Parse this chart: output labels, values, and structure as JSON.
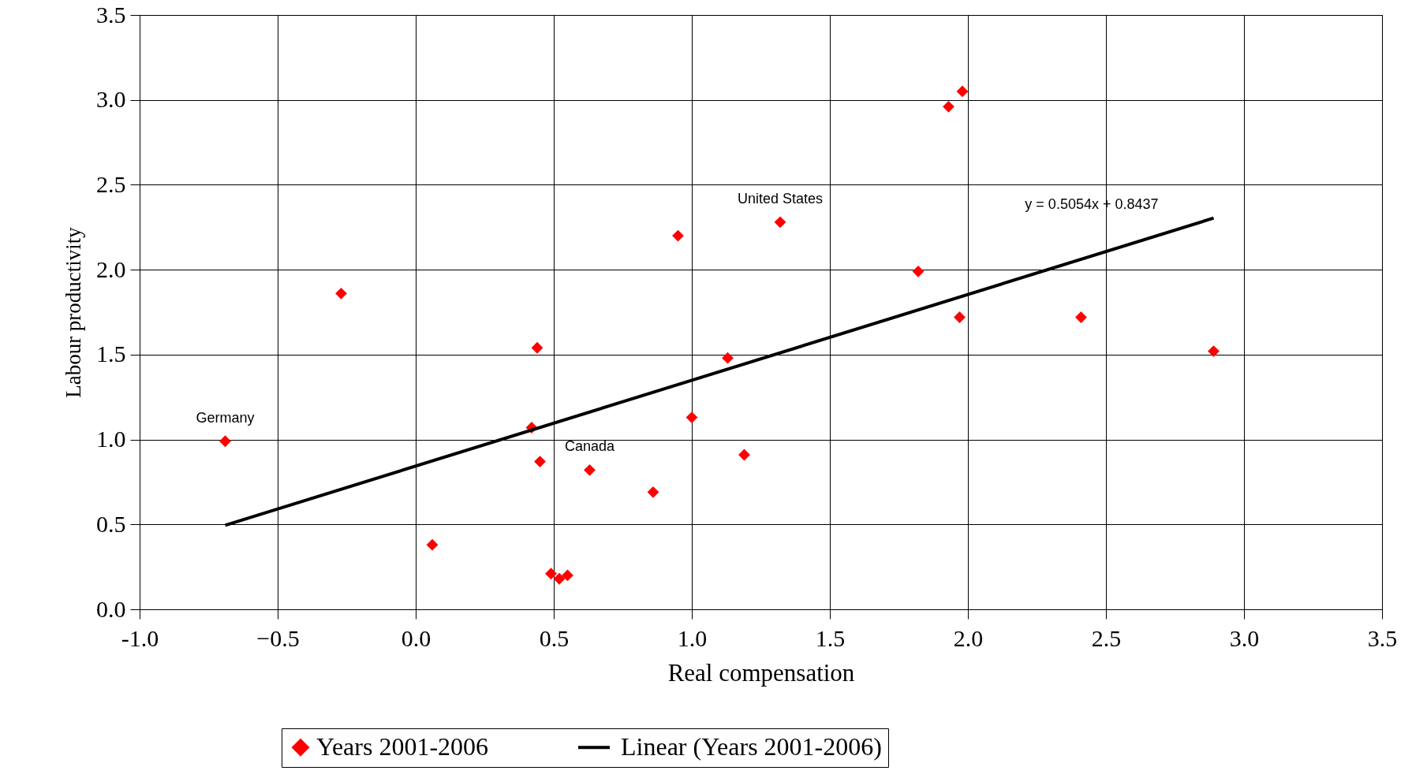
{
  "chart_data": {
    "type": "scatter",
    "xlabel": "Real compensation",
    "ylabel": "Labour productivity",
    "xlim": [
      -1.0,
      3.5
    ],
    "xticks": [
      {
        "value": -1,
        "label": "-1.0"
      },
      -0.5,
      {
        "value": 0,
        "label": "0.0"
      },
      0.5,
      {
        "value": 1,
        "label": "1.0"
      },
      1.5,
      {
        "value": 2,
        "label": "2.0"
      },
      2.5,
      {
        "value": 3,
        "label": "3.0"
      },
      3.5
    ],
    "ylim": [
      0,
      3.5
    ],
    "yticks": [
      {
        "value": 0,
        "label": "0.0"
      },
      0.5,
      {
        "value": 1,
        "label": "1.0"
      },
      1.5,
      {
        "value": 2,
        "label": "2.0"
      },
      2.5,
      {
        "value": 3,
        "label": "3.0"
      },
      3.5
    ],
    "grid": true,
    "legend": "bottom",
    "series": [
      {
        "name": "Years 2001-2006",
        "marker": "diamond",
        "color": "#ff0000",
        "x": [
          -0.69,
          -0.27,
          0.06,
          0.44,
          0.42,
          0.45,
          0.49,
          0.52,
          0.55,
          0.63,
          0.86,
          0.95,
          1.0,
          1.13,
          1.19,
          1.32,
          1.82,
          1.93,
          1.98,
          1.97,
          2.41,
          2.89
        ],
        "values": [
          0.99,
          1.86,
          0.38,
          1.54,
          1.07,
          0.87,
          0.21,
          0.18,
          0.2,
          0.82,
          0.69,
          2.2,
          1.13,
          1.48,
          0.91,
          2.28,
          1.99,
          2.96,
          3.05,
          1.72,
          1.72,
          1.52
        ]
      },
      {
        "name": "Linear (Years 2001-2006)",
        "type": "line",
        "color": "#000000",
        "x": [
          -0.69,
          2.89
        ],
        "values": [
          0.495,
          2.304
        ]
      }
    ],
    "annotations": [
      {
        "text": "Germany",
        "x": -0.69,
        "y": 0.99
      },
      {
        "text": "Canada",
        "x": 0.63,
        "y": 0.82
      },
      {
        "text": "United States",
        "x": 1.32,
        "y": 2.28
      },
      "y = 0.5054x + 0.8437"
    ]
  }
}
